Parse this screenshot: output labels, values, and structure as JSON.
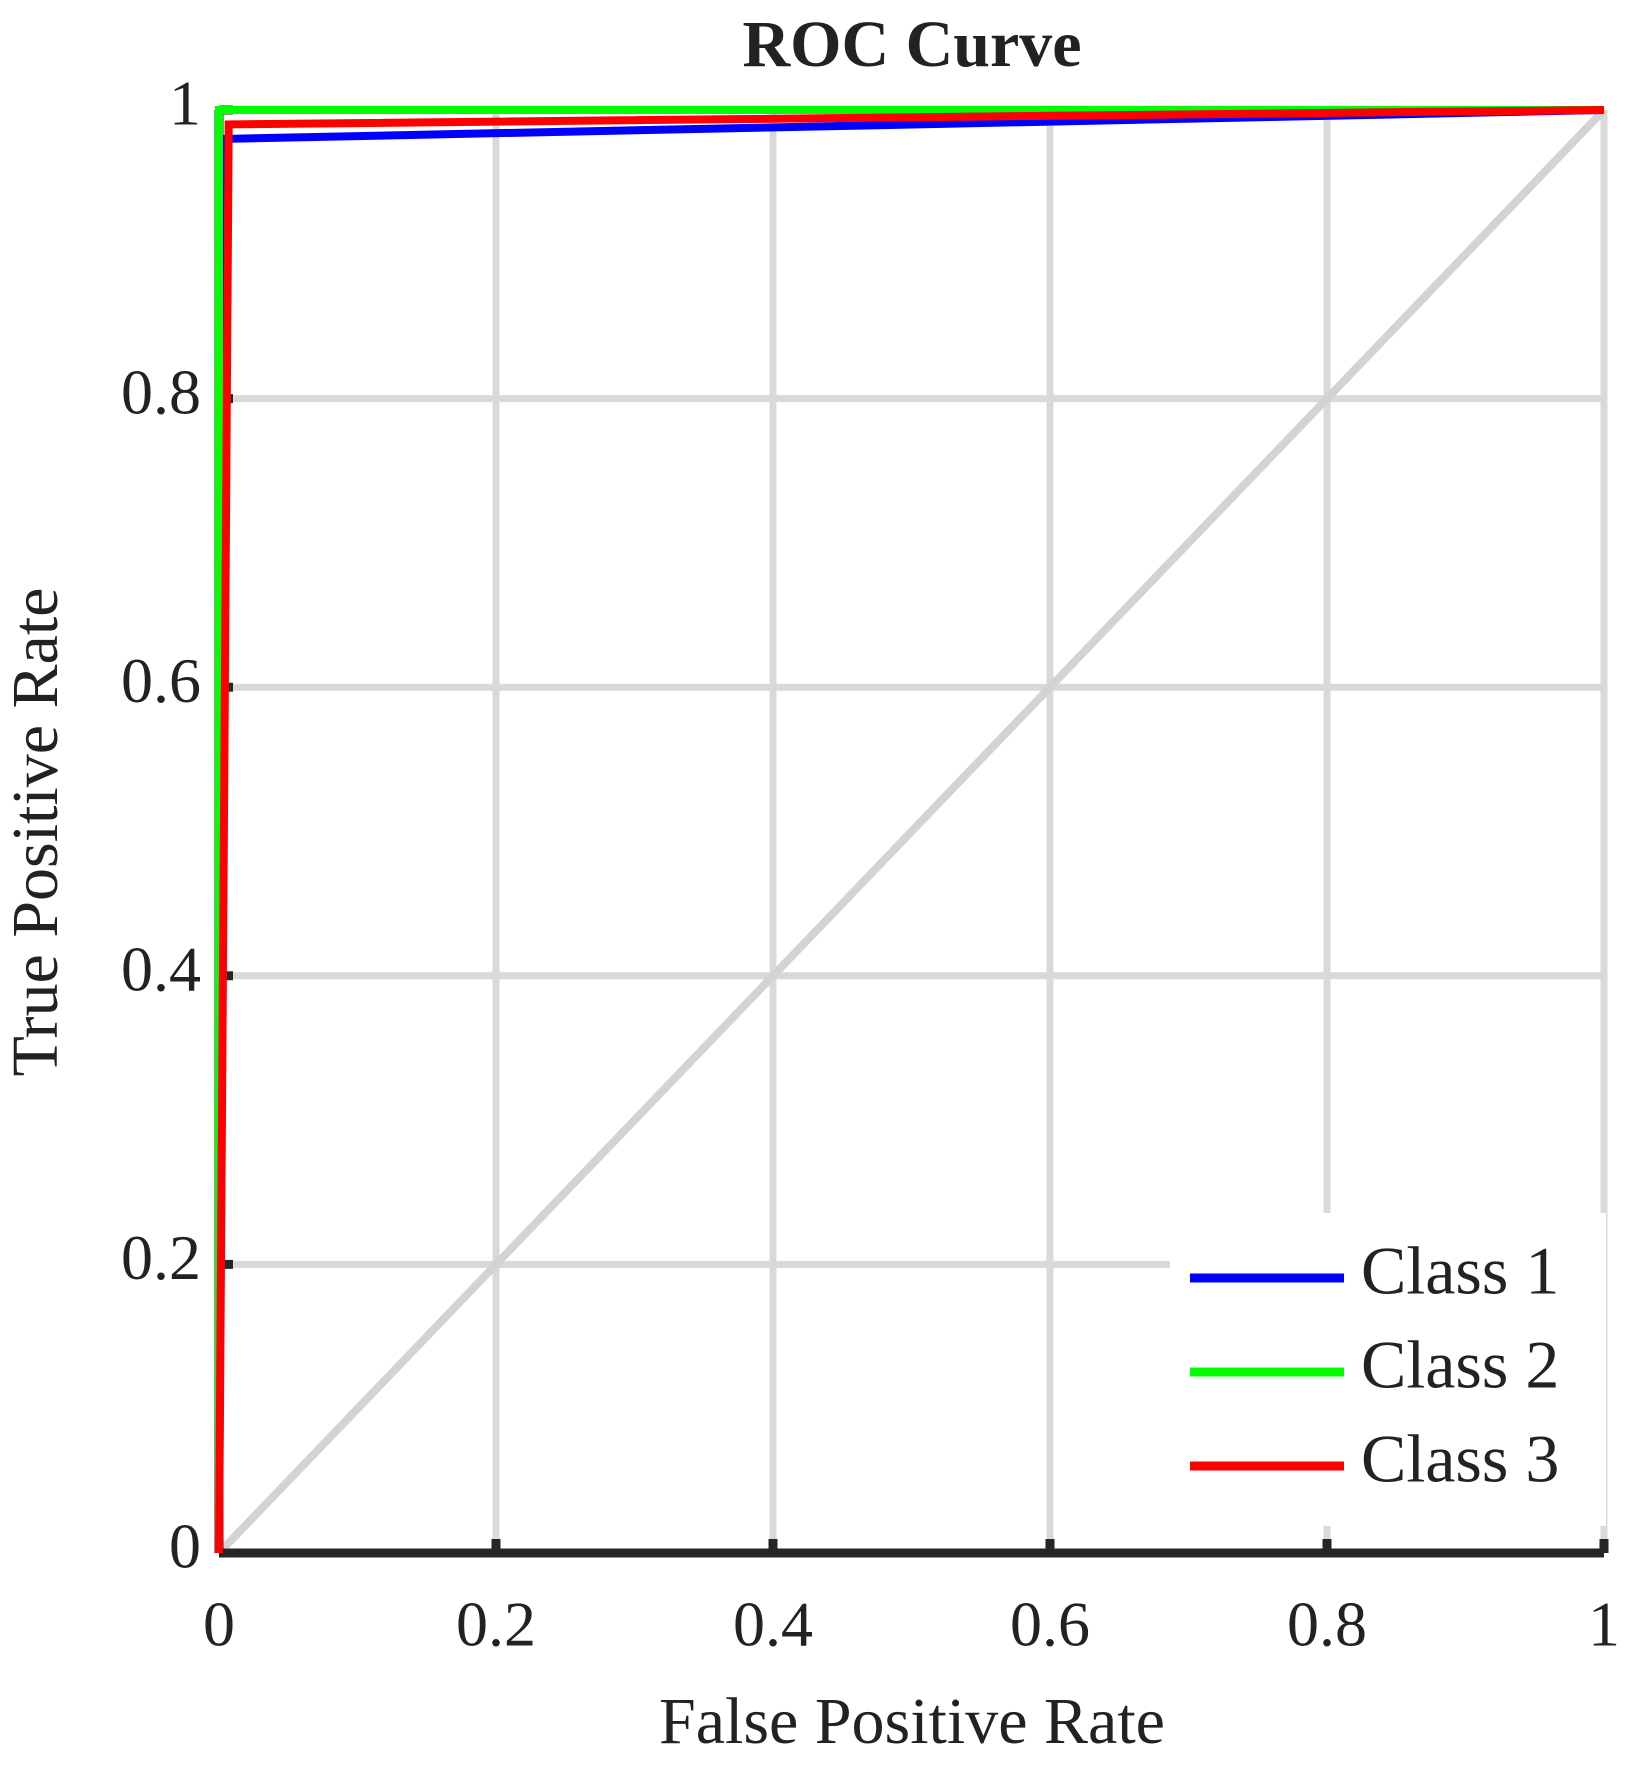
{
  "chart_data": {
    "type": "line",
    "title": "ROC Curve",
    "x_label": "False Positive Rate",
    "y_label": "True Positive Rate",
    "series": [
      {
        "name": "Class 1",
        "color": "#0000ff",
        "x": [
          0,
          0.005,
          1
        ],
        "values": [
          0,
          0.98,
          1
        ]
      },
      {
        "name": "Class 2",
        "color": "#00ff00",
        "x": [
          0,
          0,
          1
        ],
        "values": [
          0,
          1,
          1
        ]
      },
      {
        "name": "Class 3",
        "color": "#ff0000",
        "x": [
          0,
          0.007,
          1
        ],
        "values": [
          0,
          0.99,
          1
        ]
      }
    ],
    "xlim": [
      0,
      1
    ],
    "ylim": [
      0,
      1
    ],
    "xticks": [
      0,
      0.2,
      0.4,
      0.6,
      0.8,
      1
    ],
    "yticks": [
      0,
      0.2,
      0.4,
      0.6,
      0.8,
      1
    ],
    "grid": true,
    "legend": "lower right"
  }
}
